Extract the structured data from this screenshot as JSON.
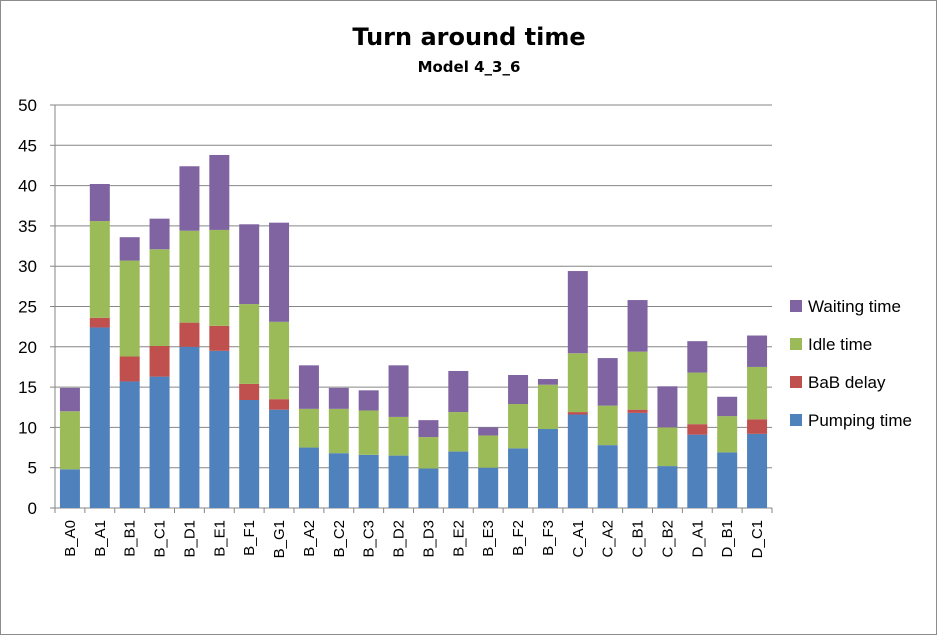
{
  "chart_data": {
    "type": "bar",
    "stacked": true,
    "title": "Turn around time",
    "subtitle": "Model 4_3_6",
    "xlabel": "",
    "ylabel": "",
    "ylim": [
      0,
      50
    ],
    "yticks": [
      0,
      5,
      10,
      15,
      20,
      25,
      30,
      35,
      40,
      45,
      50
    ],
    "grid": true,
    "legend_position": "right",
    "categories": [
      "B_A0",
      "B_A1",
      "B_B1",
      "B_C1",
      "B_D1",
      "B_E1",
      "B_F1",
      "B_G1",
      "B_A2",
      "B_C2",
      "B_C3",
      "B_D2",
      "B_D3",
      "B_E2",
      "B_E3",
      "B_F2",
      "B_F3",
      "C_A1",
      "C_A2",
      "C_B1",
      "C_B2",
      "D_A1",
      "D_B1",
      "D_C1"
    ],
    "series": [
      {
        "name": "Pumping time",
        "color": "#4f81bd",
        "values": [
          4.8,
          22.4,
          15.7,
          16.3,
          20.0,
          19.5,
          13.4,
          12.2,
          7.5,
          6.8,
          6.6,
          6.5,
          4.9,
          7.0,
          5.0,
          7.4,
          9.8,
          11.6,
          7.8,
          11.8,
          5.2,
          9.1,
          6.9,
          9.2
        ]
      },
      {
        "name": "BaB delay",
        "color": "#c0504d",
        "values": [
          0,
          1.2,
          3.1,
          3.8,
          3.0,
          3.1,
          2.0,
          1.3,
          0,
          0,
          0,
          0,
          0,
          0,
          0,
          0,
          0,
          0.3,
          0,
          0.4,
          0,
          1.3,
          0,
          1.8
        ]
      },
      {
        "name": "Idle time",
        "color": "#9bbb59",
        "values": [
          7.2,
          12.0,
          11.9,
          12.0,
          11.4,
          11.9,
          9.9,
          9.6,
          4.8,
          5.5,
          5.5,
          4.8,
          3.9,
          4.9,
          4.0,
          5.5,
          5.5,
          7.3,
          4.9,
          7.2,
          4.8,
          6.4,
          4.5,
          6.5
        ]
      },
      {
        "name": "Waiting time",
        "color": "#8064a2",
        "values": [
          2.9,
          4.6,
          2.9,
          3.8,
          8.0,
          9.3,
          9.9,
          12.3,
          5.4,
          2.6,
          2.5,
          6.4,
          2.1,
          5.1,
          1.0,
          3.6,
          0.7,
          10.2,
          5.9,
          6.4,
          5.1,
          3.9,
          2.4,
          3.9
        ]
      }
    ]
  },
  "legend": {
    "items": [
      {
        "label": "Waiting time",
        "color": "#8064a2"
      },
      {
        "label": "Idle time",
        "color": "#9bbb59"
      },
      {
        "label": "BaB delay",
        "color": "#c0504d"
      },
      {
        "label": "Pumping time",
        "color": "#4f81bd"
      }
    ]
  }
}
